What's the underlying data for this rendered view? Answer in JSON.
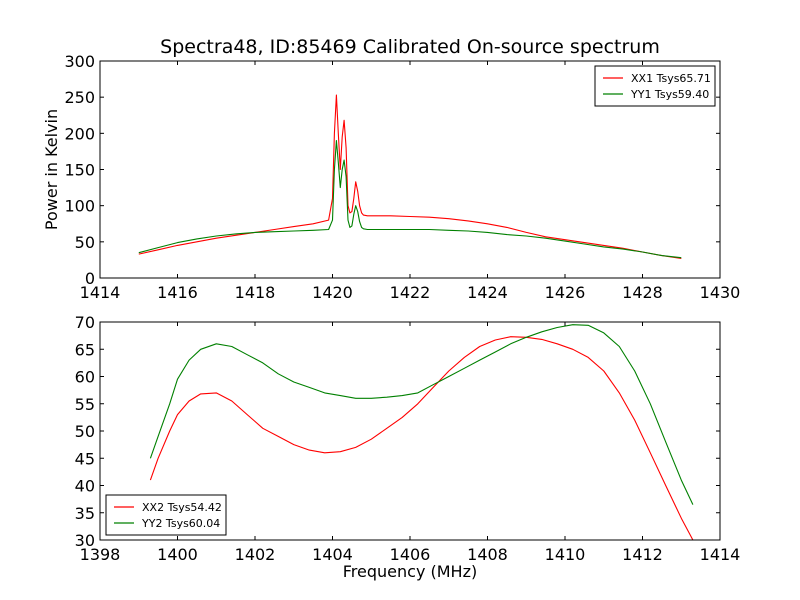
{
  "title": "Spectra48, ID:85469 Calibrated On-source spectrum",
  "chart_data": [
    {
      "type": "line",
      "ylabel": "Power in Kelvin",
      "xlabel": "",
      "xlim": [
        1414,
        1430
      ],
      "ylim": [
        0,
        300
      ],
      "xticks": [
        1414,
        1416,
        1418,
        1420,
        1422,
        1424,
        1426,
        1428,
        1430
      ],
      "yticks": [
        0,
        50,
        100,
        150,
        200,
        250,
        300
      ],
      "legend_position": "top-right",
      "grid": false,
      "series": [
        {
          "name": "XX1 Tsys65.71",
          "color": "#ff0000",
          "x": [
            1415.0,
            1415.5,
            1416.0,
            1416.5,
            1417.0,
            1417.5,
            1418.0,
            1418.5,
            1419.0,
            1419.5,
            1419.9,
            1420.0,
            1420.05,
            1420.1,
            1420.15,
            1420.2,
            1420.25,
            1420.3,
            1420.35,
            1420.4,
            1420.45,
            1420.5,
            1420.55,
            1420.6,
            1420.65,
            1420.7,
            1420.75,
            1420.8,
            1420.9,
            1421.0,
            1421.5,
            1422.0,
            1422.5,
            1423.0,
            1423.5,
            1424.0,
            1424.5,
            1425.0,
            1425.5,
            1426.0,
            1426.5,
            1427.0,
            1427.5,
            1428.0,
            1428.5,
            1429.0
          ],
          "y": [
            33,
            39,
            45,
            50,
            55,
            59,
            63,
            67,
            71,
            75,
            80,
            110,
            200,
            253,
            200,
            150,
            195,
            218,
            180,
            100,
            90,
            92,
            110,
            133,
            120,
            100,
            90,
            87,
            86,
            86,
            86,
            85,
            84,
            82,
            79,
            75,
            70,
            63,
            57,
            53,
            49,
            45,
            41,
            36,
            31,
            27
          ]
        },
        {
          "name": "YY1 Tsys59.40",
          "color": "#008000",
          "x": [
            1415.0,
            1415.5,
            1416.0,
            1416.5,
            1417.0,
            1417.5,
            1418.0,
            1418.5,
            1419.0,
            1419.5,
            1419.9,
            1420.0,
            1420.05,
            1420.1,
            1420.15,
            1420.2,
            1420.25,
            1420.3,
            1420.35,
            1420.4,
            1420.45,
            1420.5,
            1420.55,
            1420.6,
            1420.65,
            1420.7,
            1420.75,
            1420.8,
            1420.9,
            1421.0,
            1421.5,
            1422.0,
            1422.5,
            1423.0,
            1423.5,
            1424.0,
            1424.5,
            1425.0,
            1425.5,
            1426.0,
            1426.5,
            1427.0,
            1427.5,
            1428.0,
            1428.5,
            1429.0
          ],
          "y": [
            35,
            42,
            49,
            54,
            58,
            61,
            63,
            64,
            65,
            66,
            67,
            80,
            150,
            190,
            160,
            125,
            150,
            163,
            140,
            80,
            70,
            72,
            88,
            100,
            92,
            78,
            70,
            68,
            67,
            67,
            67,
            67,
            67,
            66,
            65,
            63,
            60,
            58,
            55,
            51,
            47,
            43,
            40,
            36,
            31,
            28
          ]
        }
      ]
    },
    {
      "type": "line",
      "ylabel": "",
      "xlabel": "Frequency (MHz)",
      "xlim": [
        1398,
        1414
      ],
      "ylim": [
        30,
        70
      ],
      "xticks": [
        1398,
        1400,
        1402,
        1404,
        1406,
        1408,
        1410,
        1412,
        1414
      ],
      "yticks": [
        30,
        35,
        40,
        45,
        50,
        55,
        60,
        65,
        70
      ],
      "legend_position": "lower-left",
      "grid": false,
      "series": [
        {
          "name": "XX2 Tsys54.42",
          "color": "#ff0000",
          "x": [
            1399.3,
            1399.5,
            1399.8,
            1400.0,
            1400.3,
            1400.6,
            1401.0,
            1401.4,
            1401.8,
            1402.2,
            1402.6,
            1403.0,
            1403.4,
            1403.8,
            1404.2,
            1404.6,
            1405.0,
            1405.4,
            1405.8,
            1406.2,
            1406.6,
            1407.0,
            1407.4,
            1407.8,
            1408.2,
            1408.6,
            1409.0,
            1409.4,
            1409.8,
            1410.2,
            1410.6,
            1411.0,
            1411.4,
            1411.8,
            1412.2,
            1412.6,
            1413.0,
            1413.3
          ],
          "y": [
            41,
            45,
            50,
            53,
            55.5,
            56.8,
            57,
            55.5,
            53,
            50.5,
            49,
            47.5,
            46.5,
            46,
            46.2,
            47,
            48.5,
            50.5,
            52.5,
            55,
            58,
            61,
            63.5,
            65.5,
            66.7,
            67.3,
            67.2,
            66.8,
            66,
            65,
            63.5,
            61,
            57,
            52,
            46,
            40,
            34,
            30
          ]
        },
        {
          "name": "YY2 Tsys60.04",
          "color": "#008000",
          "x": [
            1399.3,
            1399.5,
            1399.8,
            1400.0,
            1400.3,
            1400.6,
            1401.0,
            1401.4,
            1401.8,
            1402.2,
            1402.6,
            1403.0,
            1403.4,
            1403.8,
            1404.2,
            1404.6,
            1405.0,
            1405.4,
            1405.8,
            1406.2,
            1406.6,
            1407.0,
            1407.4,
            1407.8,
            1408.2,
            1408.6,
            1409.0,
            1409.4,
            1409.8,
            1410.2,
            1410.6,
            1411.0,
            1411.4,
            1411.8,
            1412.2,
            1412.6,
            1413.0,
            1413.3
          ],
          "y": [
            45,
            49,
            55,
            59.5,
            63,
            65,
            66,
            65.5,
            64,
            62.5,
            60.5,
            59,
            58,
            57,
            56.5,
            56,
            56,
            56.2,
            56.5,
            57,
            58.5,
            60,
            61.5,
            63,
            64.5,
            66,
            67.2,
            68.2,
            69,
            69.5,
            69.4,
            68,
            65.5,
            61,
            55,
            48,
            41,
            36.5
          ]
        }
      ]
    }
  ]
}
